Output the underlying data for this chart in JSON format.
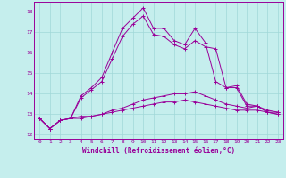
{
  "xlabel": "Windchill (Refroidissement éolien,°C)",
  "background_color": "#c5eeed",
  "grid_color": "#a0d8d8",
  "line_color": "#990099",
  "x_ticks": [
    0,
    1,
    2,
    3,
    4,
    5,
    6,
    7,
    8,
    9,
    10,
    11,
    12,
    13,
    14,
    15,
    16,
    17,
    18,
    19,
    20,
    21,
    22,
    23
  ],
  "ylim": [
    11.8,
    18.5
  ],
  "xlim": [
    -0.5,
    23.5
  ],
  "line1": [
    12.8,
    12.3,
    12.7,
    12.8,
    13.9,
    14.3,
    14.8,
    16.0,
    17.2,
    17.7,
    18.2,
    17.2,
    17.2,
    16.6,
    16.4,
    17.2,
    16.5,
    14.6,
    14.3,
    14.3,
    13.4,
    13.4,
    13.1,
    13.1
  ],
  "line2": [
    12.8,
    12.3,
    12.7,
    12.8,
    13.8,
    14.2,
    14.6,
    15.7,
    16.8,
    17.4,
    17.8,
    16.9,
    16.8,
    16.4,
    16.2,
    16.6,
    16.3,
    16.2,
    14.3,
    14.4,
    13.5,
    13.4,
    13.1,
    13.0
  ],
  "line3": [
    12.8,
    12.3,
    12.7,
    12.8,
    12.9,
    12.9,
    13.0,
    13.2,
    13.3,
    13.5,
    13.7,
    13.8,
    13.9,
    14.0,
    14.0,
    14.1,
    13.9,
    13.7,
    13.5,
    13.4,
    13.3,
    13.4,
    13.2,
    13.1
  ],
  "line4": [
    12.8,
    12.3,
    12.7,
    12.8,
    12.8,
    12.9,
    13.0,
    13.1,
    13.2,
    13.3,
    13.4,
    13.5,
    13.6,
    13.6,
    13.7,
    13.6,
    13.5,
    13.4,
    13.3,
    13.2,
    13.2,
    13.2,
    13.1,
    13.0
  ],
  "yticks": [
    12,
    13,
    14,
    15,
    16,
    17,
    18
  ],
  "xlabel_fontsize": 5.5,
  "tick_fontsize": 4.5
}
